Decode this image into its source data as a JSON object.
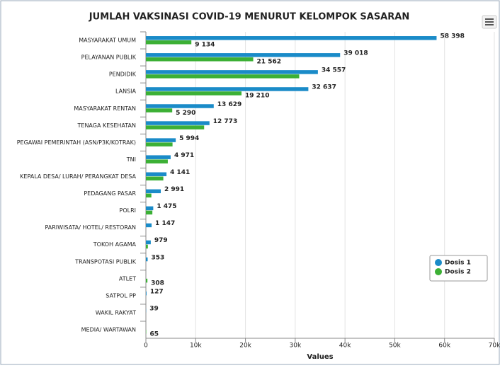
{
  "chart_data": {
    "type": "bar",
    "orientation": "horizontal",
    "title": "JUMLAH VAKSINASI COVID-19 MENURUT KELOMPOK SASARAN",
    "x_label": "Values",
    "categories": [
      "MASYARAKAT UMUM",
      "PELAYANAN PUBLIK",
      "PENDIDIK",
      "LANSIA",
      "MASYARAKAT RENTAN",
      "TENAGA KESEHATAN",
      "PEGAWAI PEMERINTAH (ASN/P3K/KOTRAK)",
      "TNI",
      "KEPALA DESA/ LURAH/ PERANGKAT DESA",
      "PEDAGANG PASAR",
      "POLRI",
      "PARIWISATA/ HOTEL/ RESTORAN",
      "TOKOH AGAMA",
      "TRANSPOTASI PUBLIK",
      "ATLET",
      "SATPOL PP",
      "WAKIL RAKYAT",
      "MEDIA/ WARTAWAN"
    ],
    "series": [
      {
        "name": "Dosis 1",
        "color": "#1a8bc8",
        "values": [
          58398,
          39018,
          34557,
          32637,
          13629,
          12773,
          5994,
          4971,
          4141,
          2991,
          1475,
          1147,
          979,
          353,
          null,
          127,
          39,
          null
        ],
        "value_labels": [
          "58 398",
          "39 018",
          "34 557",
          "32 637",
          "13 629",
          "12 773",
          "5 994",
          "4 971",
          "4 141",
          "2 991",
          "1 475",
          "1 147",
          "979",
          "353",
          null,
          "127",
          "39",
          null
        ]
      },
      {
        "name": "Dosis 2",
        "color": "#3cb035",
        "values": [
          9134,
          21562,
          30800,
          19210,
          5290,
          11700,
          5350,
          4400,
          3500,
          1100,
          1300,
          null,
          400,
          null,
          308,
          null,
          null,
          65
        ],
        "value_labels": [
          "9 134",
          "21 562",
          null,
          "19 210",
          "5 290",
          null,
          null,
          null,
          null,
          null,
          null,
          null,
          null,
          null,
          "308",
          null,
          null,
          "65"
        ]
      }
    ],
    "xlim": [
      0,
      70000
    ],
    "xticks": [
      0,
      {
        "value": 10000,
        "label": "10k"
      },
      {
        "value": 20000,
        "label": "20k"
      },
      {
        "value": 30000,
        "label": "30k"
      },
      {
        "value": 40000,
        "label": "40k"
      },
      {
        "value": 50000,
        "label": "50k"
      },
      {
        "value": 60000,
        "label": "60k"
      },
      {
        "value": 70000,
        "label": "70k"
      }
    ],
    "grid": true,
    "legend": "lower-right"
  }
}
